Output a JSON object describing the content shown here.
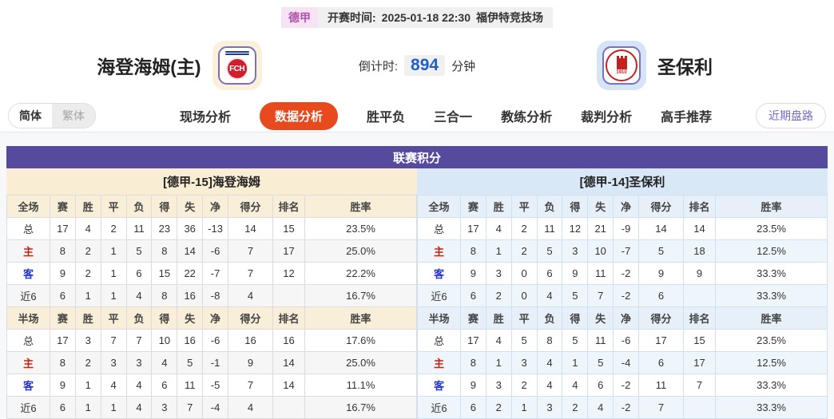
{
  "header": {
    "league_badge": "德甲",
    "kickoff_label": "开赛时间:",
    "kickoff_time": "2025-01-18 22:30",
    "venue": "福伊特竞技场",
    "home_team": "海登海姆(主)",
    "away_team": "圣保利",
    "countdown_label": "倒计时:",
    "countdown_value": "894",
    "countdown_unit": "分钟",
    "home_crest_text": "FCH",
    "away_crest_top_text": "FC ST. PAULI",
    "away_crest_year": "1910"
  },
  "tabs": {
    "lang": [
      "简体",
      "繁体"
    ],
    "items": [
      "现场分析",
      "数据分析",
      "胜平负",
      "三合一",
      "教练分析",
      "裁判分析",
      "高手推荐"
    ],
    "active": "数据分析",
    "right_button": "近期盘路"
  },
  "section_title": "联赛积分",
  "table": {
    "full_columns": [
      "全场",
      "赛",
      "胜",
      "平",
      "负",
      "得",
      "失",
      "净",
      "得分",
      "排名",
      "胜率"
    ],
    "half_columns": [
      "半场",
      "赛",
      "胜",
      "平",
      "负",
      "得",
      "失",
      "净",
      "得分",
      "排名",
      "胜率"
    ]
  },
  "row_label_colors": {
    "主": "#cc2211",
    "客": "#2233cc"
  },
  "colors": {
    "section_header_bg": "#564a9e",
    "active_tab_bg": "#e8491d",
    "countdown_value": "#1f5fc9",
    "league_badge_text": "#b34fae",
    "recent_button_text": "#7668c9",
    "left_panel_theme": "#f9eed3",
    "right_panel_theme": "#d9e8f6"
  },
  "panels": {
    "left": {
      "title": "[德甲-15]海登海姆",
      "full_rows": [
        [
          "总",
          "17",
          "4",
          "2",
          "11",
          "23",
          "36",
          "-13",
          "14",
          "15",
          "23.5%"
        ],
        [
          "主",
          "8",
          "2",
          "1",
          "5",
          "8",
          "14",
          "-6",
          "7",
          "17",
          "25.0%"
        ],
        [
          "客",
          "9",
          "2",
          "1",
          "6",
          "15",
          "22",
          "-7",
          "7",
          "12",
          "22.2%"
        ],
        [
          "近6",
          "6",
          "1",
          "1",
          "4",
          "8",
          "16",
          "-8",
          "4",
          "",
          "16.7%"
        ]
      ],
      "half_rows": [
        [
          "总",
          "17",
          "3",
          "7",
          "7",
          "10",
          "16",
          "-6",
          "16",
          "16",
          "17.6%"
        ],
        [
          "主",
          "8",
          "2",
          "3",
          "3",
          "4",
          "5",
          "-1",
          "9",
          "14",
          "25.0%"
        ],
        [
          "客",
          "9",
          "1",
          "4",
          "4",
          "6",
          "11",
          "-5",
          "7",
          "14",
          "11.1%"
        ],
        [
          "近6",
          "6",
          "1",
          "1",
          "4",
          "3",
          "7",
          "-4",
          "4",
          "",
          "16.7%"
        ]
      ]
    },
    "right": {
      "title": "[德甲-14]圣保利",
      "full_rows": [
        [
          "总",
          "17",
          "4",
          "2",
          "11",
          "12",
          "21",
          "-9",
          "14",
          "14",
          "23.5%"
        ],
        [
          "主",
          "8",
          "1",
          "2",
          "5",
          "3",
          "10",
          "-7",
          "5",
          "18",
          "12.5%"
        ],
        [
          "客",
          "9",
          "3",
          "0",
          "6",
          "9",
          "11",
          "-2",
          "9",
          "9",
          "33.3%"
        ],
        [
          "近6",
          "6",
          "2",
          "0",
          "4",
          "5",
          "7",
          "-2",
          "6",
          "",
          "33.3%"
        ]
      ],
      "half_rows": [
        [
          "总",
          "17",
          "4",
          "5",
          "8",
          "5",
          "11",
          "-6",
          "17",
          "15",
          "23.5%"
        ],
        [
          "主",
          "8",
          "1",
          "3",
          "4",
          "1",
          "5",
          "-4",
          "6",
          "17",
          "12.5%"
        ],
        [
          "客",
          "9",
          "3",
          "2",
          "4",
          "4",
          "6",
          "-2",
          "11",
          "7",
          "33.3%"
        ],
        [
          "近6",
          "6",
          "2",
          "1",
          "3",
          "2",
          "4",
          "-2",
          "7",
          "",
          "33.3%"
        ]
      ]
    }
  }
}
